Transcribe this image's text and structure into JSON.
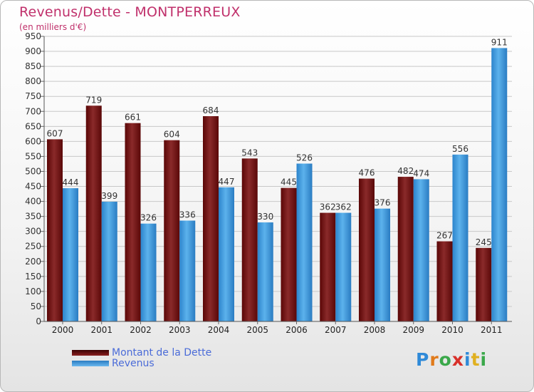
{
  "title": "Revenus/Dette - MONTPERREUX",
  "subtitle": "(en milliers d'€)",
  "logo_text": "Proxiti",
  "colors": {
    "title": "#c0306b",
    "dette": "#7a1414",
    "revenus": "#3d9de0",
    "legend_text": "#4a6bd8",
    "grid": "#c8c8c8"
  },
  "chart_data": {
    "type": "bar",
    "categories": [
      "2000",
      "2001",
      "2002",
      "2003",
      "2004",
      "2005",
      "2006",
      "2007",
      "2008",
      "2009",
      "2010",
      "2011"
    ],
    "series": [
      {
        "name": "Montant de la Dette",
        "values": [
          607,
          719,
          661,
          604,
          684,
          543,
          445,
          362,
          476,
          482,
          267,
          245
        ]
      },
      {
        "name": "Revenus",
        "values": [
          444,
          399,
          326,
          336,
          447,
          330,
          526,
          362,
          376,
          474,
          556,
          911
        ]
      }
    ],
    "ylim": [
      0,
      950
    ],
    "ytick_step": 50,
    "grid": true,
    "legend_position": "bottom-left"
  }
}
